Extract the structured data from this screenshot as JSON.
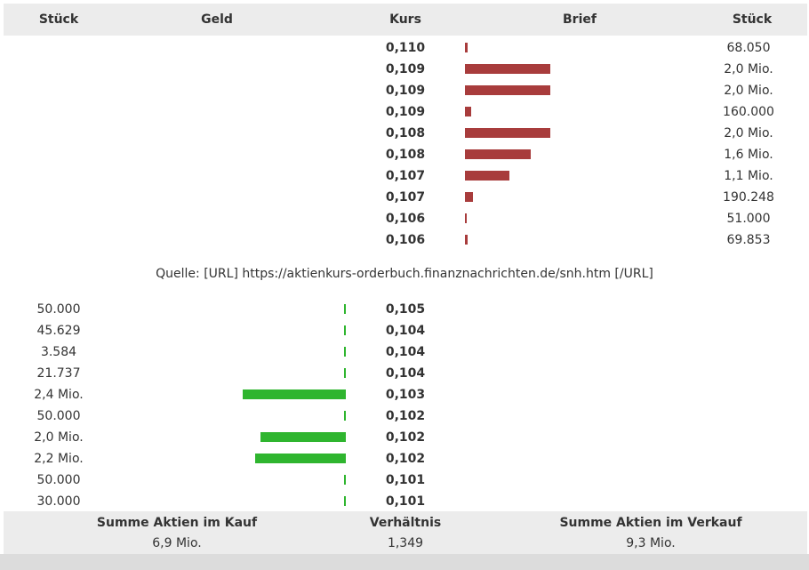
{
  "header": {
    "qty_left": "Stück",
    "bid": "Geld",
    "price": "Kurs",
    "ask": "Brief",
    "qty_right": "Stück"
  },
  "colors": {
    "ask_bar": "#a83c3c",
    "bid_bar": "#2fb52f"
  },
  "asks": [
    {
      "price": "0,110",
      "qty": "68.050",
      "bar_fraction": 0.03
    },
    {
      "price": "0,109",
      "qty": "2,0 Mio.",
      "bar_fraction": 0.83
    },
    {
      "price": "0,109",
      "qty": "2,0 Mio.",
      "bar_fraction": 0.83
    },
    {
      "price": "0,109",
      "qty": "160.000",
      "bar_fraction": 0.06
    },
    {
      "price": "0,108",
      "qty": "2,0 Mio.",
      "bar_fraction": 0.83
    },
    {
      "price": "0,108",
      "qty": "1,6 Mio.",
      "bar_fraction": 0.64
    },
    {
      "price": "0,107",
      "qty": "1,1 Mio.",
      "bar_fraction": 0.43
    },
    {
      "price": "0,107",
      "qty": "190.248",
      "bar_fraction": 0.08
    },
    {
      "price": "0,106",
      "qty": "51.000",
      "bar_fraction": 0.02
    },
    {
      "price": "0,106",
      "qty": "69.853",
      "bar_fraction": 0.03
    }
  ],
  "source": "Quelle: [URL] https://aktienkurs-orderbuch.finanznachrichten.de/snh.htm [/URL]",
  "bids": [
    {
      "qty": "50.000",
      "price": "0,105",
      "bar_fraction": 0.02
    },
    {
      "qty": "45.629",
      "price": "0,104",
      "bar_fraction": 0.02
    },
    {
      "qty": "3.584",
      "price": "0,104",
      "bar_fraction": 0.008
    },
    {
      "qty": "21.737",
      "price": "0,104",
      "bar_fraction": 0.01
    },
    {
      "qty": "2,4 Mio.",
      "price": "0,103",
      "bar_fraction": 1.0
    },
    {
      "qty": "50.000",
      "price": "0,102",
      "bar_fraction": 0.02
    },
    {
      "qty": "2,0 Mio.",
      "price": "0,102",
      "bar_fraction": 0.83
    },
    {
      "qty": "2,2 Mio.",
      "price": "0,102",
      "bar_fraction": 0.88
    },
    {
      "qty": "50.000",
      "price": "0,101",
      "bar_fraction": 0.02
    },
    {
      "qty": "30.000",
      "price": "0,101",
      "bar_fraction": 0.012
    }
  ],
  "footer": {
    "sum_buy_label": "Summe Aktien im Kauf",
    "sum_buy_value": "6,9 Mio.",
    "ratio_label": "Verhältnis",
    "ratio_value": "1,349",
    "sum_sell_label": "Summe Aktien im Verkauf",
    "sum_sell_value": "9,3 Mio."
  }
}
